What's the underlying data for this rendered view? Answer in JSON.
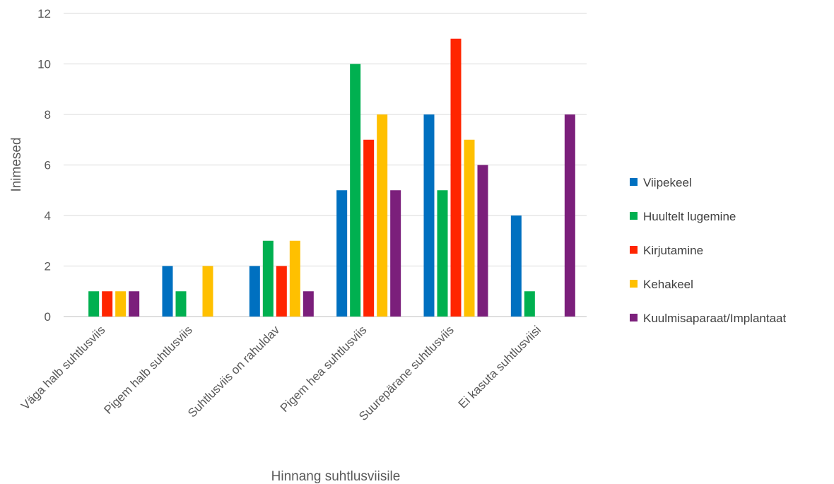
{
  "chart_data": {
    "type": "bar",
    "xlabel": "Hinnang suhtlusviisile",
    "ylabel": "Inimesed",
    "ylim": [
      0,
      12
    ],
    "yticks": [
      0,
      2,
      4,
      6,
      8,
      10,
      12
    ],
    "grid": true,
    "legend_position": "right",
    "categories": [
      "Väga halb suhtlusviis",
      "Pigem halb suhtlusviis",
      "Suhtlusviis on rahuldav",
      "Pigem hea suhtlusviis",
      "Suurepärane suhtlusviis",
      "Ei kasuta suhtlusviisi"
    ],
    "series": [
      {
        "name": "Viipekeel",
        "color": "#0070c0",
        "values": [
          0,
          2,
          2,
          5,
          8,
          4
        ]
      },
      {
        "name": "Huultelt lugemine",
        "color": "#00b050",
        "values": [
          1,
          1,
          3,
          10,
          5,
          1
        ]
      },
      {
        "name": "Kirjutamine",
        "color": "#ff2500",
        "values": [
          1,
          0,
          2,
          7,
          11,
          0
        ]
      },
      {
        "name": "Kehakeel",
        "color": "#ffc000",
        "values": [
          1,
          2,
          3,
          8,
          7,
          0
        ]
      },
      {
        "name": "Kuulmisaparaat/Implantaat",
        "color": "#7b1f7b",
        "values": [
          1,
          0,
          1,
          5,
          6,
          8
        ]
      }
    ]
  }
}
